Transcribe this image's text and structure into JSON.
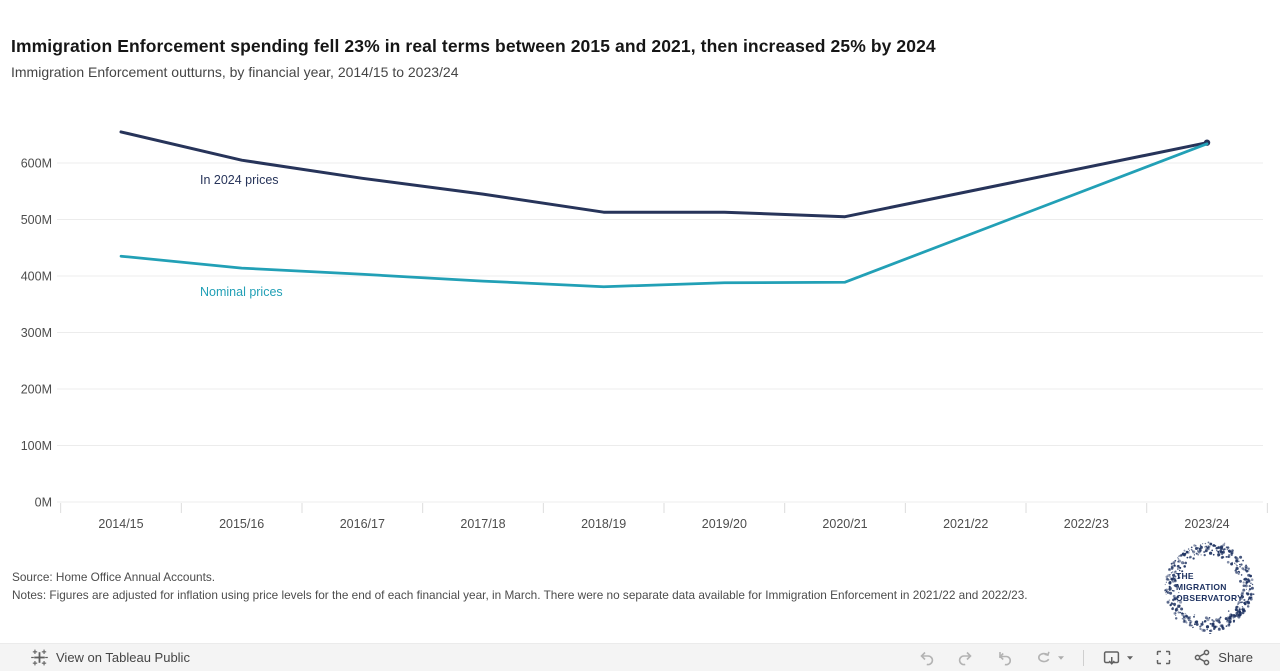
{
  "header": {
    "title": "Immigration Enforcement spending fell 23% in real terms between 2015 and 2021, then increased 25% by 2024",
    "subtitle": "Immigration Enforcement outturns, by financial year, 2014/15 to 2023/24"
  },
  "chart_data": {
    "type": "line",
    "title": "Immigration Enforcement outturns, by financial year, 2014/15 to 2023/24",
    "categories": [
      "2014/15",
      "2015/16",
      "2016/17",
      "2017/18",
      "2018/19",
      "2019/20",
      "2020/21",
      "2021/22",
      "2022/23",
      "2023/24"
    ],
    "series": [
      {
        "name": "In 2024 prices",
        "color": "#27345a",
        "values": [
          655,
          605,
          573,
          545,
          513,
          513,
          505,
          null,
          null,
          636
        ]
      },
      {
        "name": "Nominal prices",
        "color": "#22a0b6",
        "values": [
          435,
          414,
          403,
          391,
          381,
          388,
          389,
          null,
          null,
          634
        ]
      }
    ],
    "yticks": [
      0,
      100,
      200,
      300,
      400,
      500,
      600
    ],
    "ytick_suffix": "M",
    "ylim": [
      0,
      690
    ],
    "xlabel": "",
    "ylabel": "",
    "grid": true,
    "legend_position": "inline-labels",
    "notes": "No separate data for 2021/22 and 2022/23; lines connect 2020/21 directly to 2023/24"
  },
  "footer": {
    "source": "Source: Home Office Annual Accounts.",
    "notes": "Notes: Figures are adjusted for inflation using price levels for the end of each financial year, in March. There were no separate data available for Immigration Enforcement in 2021/22 and 2022/23."
  },
  "logo": {
    "line1": "THE",
    "line2": "MIGRATION",
    "line3": "OBSERVATORY",
    "color": "#1d3160"
  },
  "toolbar": {
    "view_label": "View on Tableau Public",
    "share_label": "Share",
    "icons": [
      "tableau-logo",
      "undo",
      "redo",
      "revert",
      "refresh",
      "download-device",
      "fullscreen",
      "share"
    ]
  }
}
